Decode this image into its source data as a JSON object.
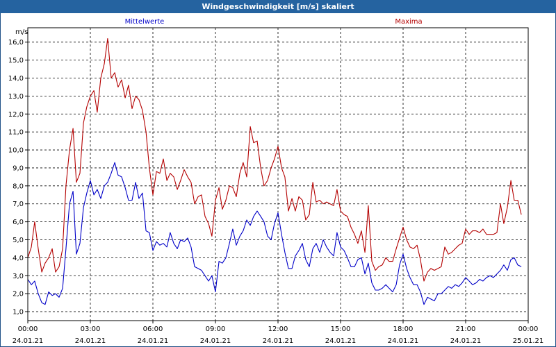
{
  "title": "Windgeschwindigkeit [m/s] skaliert",
  "colors": {
    "titlebar": "#2563a0",
    "mean": "#0000c8",
    "max": "#b40000",
    "grid": "#000000"
  },
  "chart_data": {
    "type": "line",
    "title": "Windgeschwindigkeit [m/s] skaliert",
    "ylabel": "m/s",
    "xlabel": "",
    "ylim": [
      0.5,
      16.8
    ],
    "xlim": [
      0,
      24
    ],
    "grid": true,
    "legend": "top",
    "yticks": [
      "1,0",
      "2,0",
      "3,0",
      "4,0",
      "5,0",
      "6,0",
      "7,0",
      "8,0",
      "9,0",
      "10,0",
      "11,0",
      "12,0",
      "13,0",
      "14,0",
      "15,0",
      "16,0"
    ],
    "xticks": [
      {
        "time": "00:00",
        "date": "24.01.21"
      },
      {
        "time": "03:00",
        "date": "24.01.21"
      },
      {
        "time": "06:00",
        "date": "24.01.21"
      },
      {
        "time": "09:00",
        "date": "24.01.21"
      },
      {
        "time": "12:00",
        "date": "24.01.21"
      },
      {
        "time": "15:00",
        "date": "24.01.21"
      },
      {
        "time": "18:00",
        "date": "24.01.21"
      },
      {
        "time": "21:00",
        "date": "24.01.21"
      },
      {
        "time": "00:00",
        "date": "25.01.21"
      }
    ],
    "series": [
      {
        "name": "Mittelwerte",
        "points": [
          [
            0,
            2.8
          ],
          [
            0.17,
            2.5
          ],
          [
            0.33,
            2.7
          ],
          [
            0.5,
            2.0
          ],
          [
            0.67,
            1.5
          ],
          [
            0.83,
            1.4
          ],
          [
            1.0,
            2.1
          ],
          [
            1.17,
            1.9
          ],
          [
            1.33,
            2.0
          ],
          [
            1.5,
            1.8
          ],
          [
            1.67,
            2.3
          ],
          [
            1.83,
            4.5
          ],
          [
            2.0,
            7.0
          ],
          [
            2.17,
            7.7
          ],
          [
            2.33,
            4.2
          ],
          [
            2.5,
            4.8
          ],
          [
            2.67,
            6.8
          ],
          [
            2.83,
            7.6
          ],
          [
            3.0,
            8.3
          ],
          [
            3.17,
            7.5
          ],
          [
            3.33,
            7.8
          ],
          [
            3.5,
            7.3
          ],
          [
            3.67,
            8.0
          ],
          [
            3.83,
            8.2
          ],
          [
            4.0,
            8.7
          ],
          [
            4.17,
            9.3
          ],
          [
            4.33,
            8.6
          ],
          [
            4.5,
            8.5
          ],
          [
            4.67,
            7.9
          ],
          [
            4.83,
            7.2
          ],
          [
            5.0,
            7.2
          ],
          [
            5.17,
            8.2
          ],
          [
            5.33,
            7.3
          ],
          [
            5.5,
            7.6
          ],
          [
            5.67,
            5.5
          ],
          [
            5.83,
            5.4
          ],
          [
            6.0,
            4.4
          ],
          [
            6.17,
            4.9
          ],
          [
            6.33,
            4.7
          ],
          [
            6.5,
            4.8
          ],
          [
            6.67,
            4.6
          ],
          [
            6.83,
            5.4
          ],
          [
            7.0,
            4.8
          ],
          [
            7.17,
            4.5
          ],
          [
            7.33,
            5.0
          ],
          [
            7.5,
            4.9
          ],
          [
            7.67,
            5.1
          ],
          [
            7.83,
            4.6
          ],
          [
            8.0,
            3.5
          ],
          [
            8.17,
            3.4
          ],
          [
            8.33,
            3.3
          ],
          [
            8.5,
            3.0
          ],
          [
            8.67,
            2.7
          ],
          [
            8.83,
            3.0
          ],
          [
            9.0,
            2.1
          ],
          [
            9.17,
            3.8
          ],
          [
            9.33,
            3.7
          ],
          [
            9.5,
            4.0
          ],
          [
            9.67,
            4.8
          ],
          [
            9.83,
            5.6
          ],
          [
            10.0,
            4.7
          ],
          [
            10.17,
            5.2
          ],
          [
            10.33,
            5.5
          ],
          [
            10.5,
            6.1
          ],
          [
            10.67,
            5.8
          ],
          [
            10.83,
            6.3
          ],
          [
            11.0,
            6.6
          ],
          [
            11.17,
            6.3
          ],
          [
            11.33,
            6.0
          ],
          [
            11.5,
            5.2
          ],
          [
            11.67,
            5.0
          ],
          [
            11.83,
            5.9
          ],
          [
            12.0,
            6.5
          ],
          [
            12.17,
            5.3
          ],
          [
            12.33,
            4.3
          ],
          [
            12.5,
            3.4
          ],
          [
            12.67,
            3.4
          ],
          [
            12.83,
            4.1
          ],
          [
            13.0,
            4.4
          ],
          [
            13.17,
            4.8
          ],
          [
            13.33,
            3.9
          ],
          [
            13.5,
            3.5
          ],
          [
            13.67,
            4.5
          ],
          [
            13.83,
            4.8
          ],
          [
            14.0,
            4.3
          ],
          [
            14.17,
            5.0
          ],
          [
            14.33,
            4.6
          ],
          [
            14.5,
            4.3
          ],
          [
            14.67,
            4.1
          ],
          [
            14.83,
            5.4
          ],
          [
            15.0,
            4.6
          ],
          [
            15.17,
            4.4
          ],
          [
            15.33,
            4.0
          ],
          [
            15.5,
            3.5
          ],
          [
            15.67,
            3.5
          ],
          [
            15.83,
            3.9
          ],
          [
            16.0,
            4.0
          ],
          [
            16.17,
            3.1
          ],
          [
            16.33,
            3.7
          ],
          [
            16.5,
            2.6
          ],
          [
            16.67,
            2.2
          ],
          [
            16.83,
            2.2
          ],
          [
            17.0,
            2.3
          ],
          [
            17.17,
            2.5
          ],
          [
            17.33,
            2.3
          ],
          [
            17.5,
            2.1
          ],
          [
            17.67,
            2.5
          ],
          [
            17.83,
            3.6
          ],
          [
            18.0,
            4.2
          ],
          [
            18.17,
            3.4
          ],
          [
            18.33,
            2.9
          ],
          [
            18.5,
            2.5
          ],
          [
            18.67,
            2.5
          ],
          [
            18.83,
            2.1
          ],
          [
            19.0,
            1.4
          ],
          [
            19.17,
            1.8
          ],
          [
            19.33,
            1.7
          ],
          [
            19.5,
            1.6
          ],
          [
            19.67,
            2.0
          ],
          [
            19.83,
            2.0
          ],
          [
            20.0,
            2.2
          ],
          [
            20.17,
            2.4
          ],
          [
            20.33,
            2.3
          ],
          [
            20.5,
            2.5
          ],
          [
            20.67,
            2.4
          ],
          [
            20.83,
            2.6
          ],
          [
            21.0,
            2.9
          ],
          [
            21.17,
            2.7
          ],
          [
            21.33,
            2.5
          ],
          [
            21.5,
            2.6
          ],
          [
            21.67,
            2.8
          ],
          [
            21.83,
            2.7
          ],
          [
            22.0,
            2.9
          ],
          [
            22.17,
            3.0
          ],
          [
            22.33,
            2.9
          ],
          [
            22.5,
            3.1
          ],
          [
            22.67,
            3.3
          ],
          [
            22.83,
            3.6
          ],
          [
            23.0,
            3.3
          ],
          [
            23.17,
            3.9
          ],
          [
            23.33,
            4.0
          ],
          [
            23.5,
            3.6
          ],
          [
            23.67,
            3.5
          ]
        ]
      },
      {
        "name": "Maxima",
        "points": [
          [
            0,
            4.0
          ],
          [
            0.17,
            4.6
          ],
          [
            0.33,
            6.0
          ],
          [
            0.5,
            4.5
          ],
          [
            0.67,
            3.2
          ],
          [
            0.83,
            3.7
          ],
          [
            1.0,
            4.0
          ],
          [
            1.17,
            4.5
          ],
          [
            1.33,
            3.2
          ],
          [
            1.5,
            3.5
          ],
          [
            1.67,
            4.5
          ],
          [
            1.83,
            8.0
          ],
          [
            2.0,
            10.0
          ],
          [
            2.17,
            11.2
          ],
          [
            2.33,
            8.2
          ],
          [
            2.5,
            8.7
          ],
          [
            2.67,
            11.5
          ],
          [
            2.83,
            12.4
          ],
          [
            3.0,
            13.0
          ],
          [
            3.17,
            13.3
          ],
          [
            3.33,
            12.1
          ],
          [
            3.5,
            14.0
          ],
          [
            3.67,
            14.8
          ],
          [
            3.83,
            16.2
          ],
          [
            4.0,
            14.0
          ],
          [
            4.17,
            14.3
          ],
          [
            4.33,
            13.5
          ],
          [
            4.5,
            13.9
          ],
          [
            4.67,
            12.9
          ],
          [
            4.83,
            13.6
          ],
          [
            5.0,
            12.3
          ],
          [
            5.17,
            13.0
          ],
          [
            5.33,
            12.8
          ],
          [
            5.5,
            12.2
          ],
          [
            5.67,
            11.0
          ],
          [
            5.83,
            9.0
          ],
          [
            6.0,
            7.5
          ],
          [
            6.17,
            8.8
          ],
          [
            6.33,
            8.7
          ],
          [
            6.5,
            9.5
          ],
          [
            6.67,
            8.3
          ],
          [
            6.83,
            8.7
          ],
          [
            7.0,
            8.5
          ],
          [
            7.17,
            7.8
          ],
          [
            7.33,
            8.3
          ],
          [
            7.5,
            8.9
          ],
          [
            7.67,
            8.5
          ],
          [
            7.83,
            8.2
          ],
          [
            8.0,
            7.0
          ],
          [
            8.17,
            7.4
          ],
          [
            8.33,
            7.5
          ],
          [
            8.5,
            6.3
          ],
          [
            8.67,
            5.9
          ],
          [
            8.83,
            5.2
          ],
          [
            9.0,
            7.2
          ],
          [
            9.17,
            7.9
          ],
          [
            9.33,
            6.7
          ],
          [
            9.5,
            7.2
          ],
          [
            9.67,
            8.0
          ],
          [
            9.83,
            7.9
          ],
          [
            10.0,
            7.4
          ],
          [
            10.17,
            8.7
          ],
          [
            10.33,
            9.3
          ],
          [
            10.5,
            8.5
          ],
          [
            10.67,
            11.3
          ],
          [
            10.83,
            10.4
          ],
          [
            11.0,
            10.5
          ],
          [
            11.17,
            9.0
          ],
          [
            11.33,
            8.0
          ],
          [
            11.5,
            8.3
          ],
          [
            11.67,
            9.0
          ],
          [
            11.83,
            9.5
          ],
          [
            12.0,
            10.2
          ],
          [
            12.17,
            9.0
          ],
          [
            12.33,
            8.5
          ],
          [
            12.5,
            6.6
          ],
          [
            12.67,
            7.3
          ],
          [
            12.83,
            6.6
          ],
          [
            13.0,
            7.4
          ],
          [
            13.17,
            7.2
          ],
          [
            13.33,
            6.1
          ],
          [
            13.5,
            6.4
          ],
          [
            13.67,
            8.2
          ],
          [
            13.83,
            7.1
          ],
          [
            14.0,
            7.2
          ],
          [
            14.17,
            7.0
          ],
          [
            14.33,
            7.1
          ],
          [
            14.5,
            7.0
          ],
          [
            14.67,
            6.9
          ],
          [
            14.83,
            7.8
          ],
          [
            15.0,
            6.6
          ],
          [
            15.17,
            6.4
          ],
          [
            15.33,
            6.3
          ],
          [
            15.5,
            5.7
          ],
          [
            15.67,
            5.3
          ],
          [
            15.83,
            4.8
          ],
          [
            16.0,
            5.5
          ],
          [
            16.17,
            4.3
          ],
          [
            16.33,
            6.9
          ],
          [
            16.5,
            3.8
          ],
          [
            16.67,
            3.3
          ],
          [
            16.83,
            3.5
          ],
          [
            17.0,
            3.6
          ],
          [
            17.17,
            4.0
          ],
          [
            17.33,
            3.8
          ],
          [
            17.5,
            3.8
          ],
          [
            17.67,
            4.5
          ],
          [
            17.83,
            5.1
          ],
          [
            18.0,
            5.7
          ],
          [
            18.17,
            5.0
          ],
          [
            18.33,
            4.6
          ],
          [
            18.5,
            4.5
          ],
          [
            18.67,
            4.7
          ],
          [
            18.83,
            3.9
          ],
          [
            19.0,
            2.7
          ],
          [
            19.17,
            3.2
          ],
          [
            19.33,
            3.4
          ],
          [
            19.5,
            3.3
          ],
          [
            19.67,
            3.4
          ],
          [
            19.83,
            3.5
          ],
          [
            20.0,
            4.6
          ],
          [
            20.17,
            4.2
          ],
          [
            20.33,
            4.3
          ],
          [
            20.5,
            4.5
          ],
          [
            20.67,
            4.7
          ],
          [
            20.83,
            4.8
          ],
          [
            21.0,
            5.6
          ],
          [
            21.17,
            5.3
          ],
          [
            21.33,
            5.5
          ],
          [
            21.5,
            5.5
          ],
          [
            21.67,
            5.4
          ],
          [
            21.83,
            5.6
          ],
          [
            22.0,
            5.3
          ],
          [
            22.17,
            5.3
          ],
          [
            22.33,
            5.3
          ],
          [
            22.5,
            5.4
          ],
          [
            22.67,
            7.0
          ],
          [
            22.83,
            5.9
          ],
          [
            23.0,
            6.8
          ],
          [
            23.17,
            8.3
          ],
          [
            23.33,
            7.2
          ],
          [
            23.5,
            7.2
          ],
          [
            23.67,
            6.4
          ]
        ]
      }
    ]
  }
}
